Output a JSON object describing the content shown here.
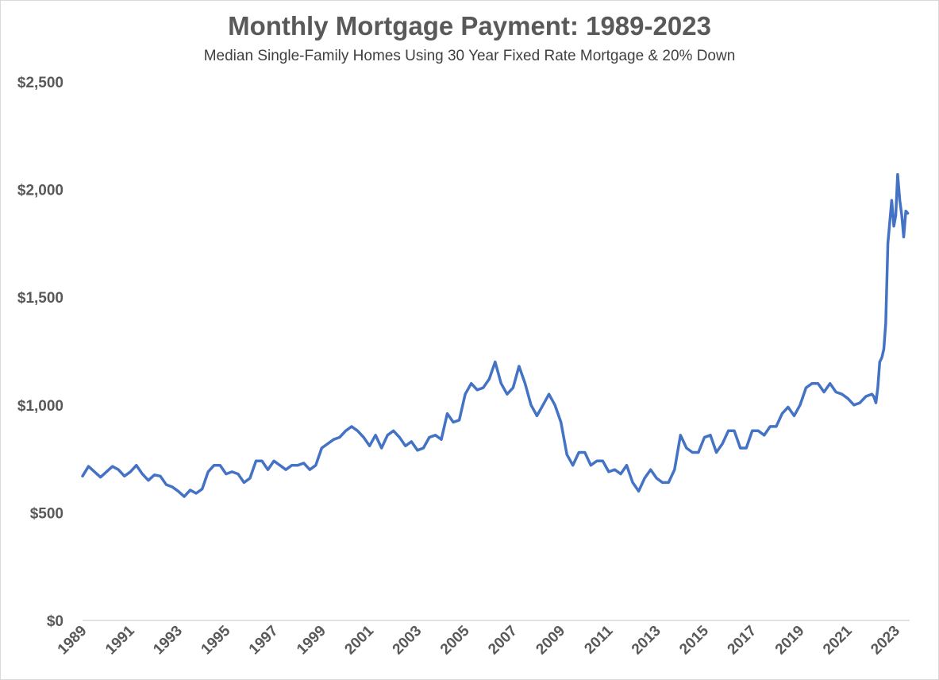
{
  "chart_data": {
    "type": "line",
    "title": "Monthly Mortgage Payment: 1989-2023",
    "subtitle": "Median Single-Family Homes Using 30 Year Fixed Rate Mortgage & 20% Down",
    "xlabel": "",
    "ylabel": "",
    "ylim": [
      0,
      2500
    ],
    "y_ticks": [
      0,
      500,
      1000,
      1500,
      2000,
      2500
    ],
    "y_tick_labels": [
      "$0",
      "$500",
      "$1,000",
      "$1,500",
      "$2,000",
      "$2,500"
    ],
    "x_tick_labels": [
      "1989",
      "1991",
      "1993",
      "1995",
      "1997",
      "1999",
      "2001",
      "2003",
      "2005",
      "2007",
      "2009",
      "2011",
      "2013",
      "2015",
      "2017",
      "2019",
      "2021",
      "2023"
    ],
    "xlim": [
      1989.0,
      2023.58
    ],
    "grid": "horizontal-baseline",
    "legend": "none",
    "colors": {
      "line": "#4472c4",
      "text": "#595959",
      "axis": "#d9d9d9"
    },
    "series": [
      {
        "x": [
          1989.0,
          1989.25,
          1989.5,
          1989.75,
          1990.0,
          1990.25,
          1990.5,
          1990.75,
          1991.0,
          1991.25,
          1991.5,
          1991.75,
          1992.0,
          1992.25,
          1992.5,
          1992.75,
          1993.0,
          1993.25,
          1993.5,
          1993.75,
          1994.0,
          1994.25,
          1994.5,
          1994.75,
          1995.0,
          1995.25,
          1995.5,
          1995.75,
          1996.0,
          1996.25,
          1996.5,
          1996.75,
          1997.0,
          1997.25,
          1997.5,
          1997.75,
          1998.0,
          1998.25,
          1998.5,
          1998.75,
          1999.0,
          1999.25,
          1999.5,
          1999.75,
          2000.0,
          2000.25,
          2000.5,
          2000.75,
          2001.0,
          2001.25,
          2001.5,
          2001.75,
          2002.0,
          2002.25,
          2002.5,
          2002.75,
          2003.0,
          2003.25,
          2003.5,
          2003.75,
          2004.0,
          2004.25,
          2004.5,
          2004.75,
          2005.0,
          2005.25,
          2005.5,
          2005.75,
          2006.0,
          2006.25,
          2006.5,
          2006.75,
          2007.0,
          2007.25,
          2007.5,
          2007.75,
          2008.0,
          2008.25,
          2008.5,
          2008.75,
          2009.0,
          2009.25,
          2009.5,
          2009.75,
          2010.0,
          2010.25,
          2010.5,
          2010.75,
          2011.0,
          2011.25,
          2011.5,
          2011.75,
          2012.0,
          2012.25,
          2012.5,
          2012.75,
          2013.0,
          2013.25,
          2013.5,
          2013.75,
          2014.0,
          2014.25,
          2014.5,
          2014.75,
          2015.0,
          2015.25,
          2015.5,
          2015.75,
          2016.0,
          2016.25,
          2016.5,
          2016.75,
          2017.0,
          2017.25,
          2017.5,
          2017.75,
          2018.0,
          2018.25,
          2018.5,
          2018.75,
          2019.0,
          2019.25,
          2019.5,
          2019.75,
          2020.0,
          2020.25,
          2020.5,
          2020.75,
          2021.0,
          2021.25,
          2021.5,
          2021.75,
          2022.0,
          2022.08,
          2022.17,
          2022.25,
          2022.33,
          2022.42,
          2022.5,
          2022.58,
          2022.67,
          2022.75,
          2022.83,
          2022.92,
          2023.0,
          2023.08,
          2023.17,
          2023.25,
          2023.33,
          2023.42,
          2023.5
        ],
        "values": [
          670,
          715,
          690,
          665,
          690,
          715,
          700,
          670,
          690,
          720,
          680,
          650,
          675,
          670,
          630,
          620,
          600,
          575,
          605,
          590,
          610,
          690,
          720,
          720,
          680,
          690,
          680,
          640,
          660,
          740,
          740,
          700,
          740,
          720,
          700,
          720,
          720,
          730,
          700,
          720,
          800,
          820,
          840,
          850,
          880,
          900,
          880,
          850,
          810,
          860,
          800,
          860,
          880,
          850,
          810,
          830,
          790,
          800,
          850,
          860,
          840,
          960,
          920,
          930,
          1050,
          1100,
          1070,
          1080,
          1120,
          1200,
          1100,
          1050,
          1080,
          1180,
          1100,
          1000,
          950,
          1000,
          1050,
          1000,
          920,
          770,
          720,
          780,
          780,
          720,
          740,
          740,
          690,
          700,
          680,
          720,
          640,
          600,
          660,
          700,
          660,
          640,
          640,
          700,
          860,
          800,
          780,
          780,
          850,
          860,
          780,
          820,
          880,
          880,
          800,
          800,
          880,
          880,
          860,
          900,
          900,
          960,
          990,
          950,
          1000,
          1080,
          1100,
          1100,
          1060,
          1100,
          1060,
          1050,
          1030,
          1000,
          1010,
          1040,
          1050,
          1040,
          1010,
          1080,
          1200,
          1220,
          1260,
          1380,
          1750,
          1850,
          1950,
          1830,
          1880,
          2070,
          1950,
          1880,
          1780,
          1900,
          1890
        ]
      }
    ]
  }
}
